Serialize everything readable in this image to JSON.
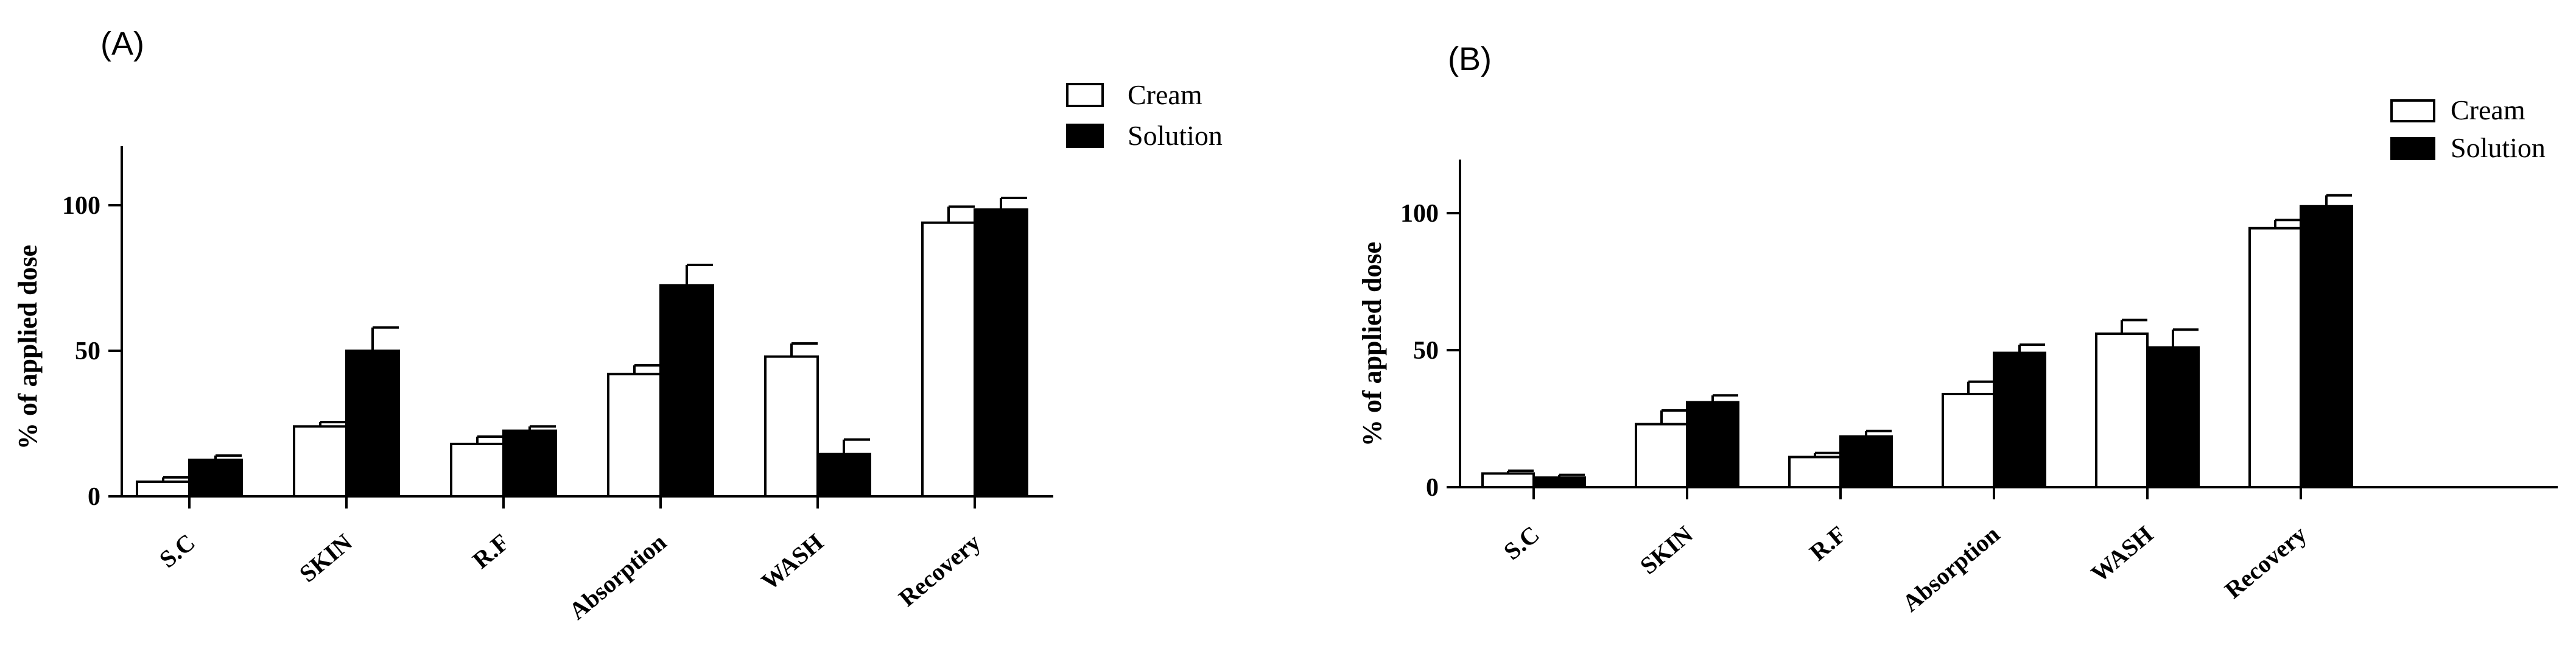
{
  "chart_data": [
    {
      "type": "bar",
      "panel_label": "(A)",
      "ylabel": "% of applied dose",
      "categories": [
        "S.C",
        "SKIN",
        "R.F",
        "Absorption",
        "WASH",
        "Recovery"
      ],
      "yticks": [
        0,
        50,
        100
      ],
      "ylim": [
        0,
        120
      ],
      "series": [
        {
          "name": "Cream",
          "fill": "#ffffff",
          "values": [
            5,
            24,
            18,
            42,
            48,
            94
          ],
          "errors": [
            1.5,
            1.5,
            2.5,
            3,
            4.5,
            5.5
          ]
        },
        {
          "name": "Solution",
          "fill": "#000000",
          "values": [
            12.5,
            50,
            22.5,
            72.5,
            14.5,
            98.5
          ],
          "errors": [
            1.5,
            8,
            1.5,
            7,
            5,
            4
          ]
        }
      ],
      "legend_position": "top-right"
    },
    {
      "type": "bar",
      "panel_label": "(B)",
      "ylabel": "% of applied dose",
      "categories": [
        "S.C",
        "SKIN",
        "R.F",
        "Absorption",
        "WASH",
        "Recovery"
      ],
      "yticks": [
        0,
        50,
        100
      ],
      "ylim": [
        0,
        120
      ],
      "series": [
        {
          "name": "Cream",
          "fill": "#ffffff",
          "values": [
            5,
            23,
            11,
            34,
            56,
            94.5
          ],
          "errors": [
            1,
            5,
            1.5,
            4.5,
            5,
            3
          ]
        },
        {
          "name": "Solution",
          "fill": "#000000",
          "values": [
            3.5,
            31,
            18.5,
            49,
            51,
            102.5
          ],
          "errors": [
            1,
            2.5,
            2,
            3,
            6.5,
            4
          ]
        }
      ],
      "legend_position": "top-right"
    }
  ]
}
